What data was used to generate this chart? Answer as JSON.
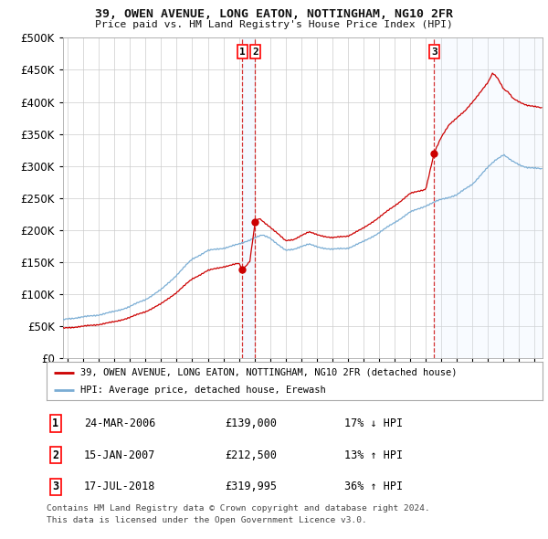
{
  "title": "39, OWEN AVENUE, LONG EATON, NOTTINGHAM, NG10 2FR",
  "subtitle": "Price paid vs. HM Land Registry's House Price Index (HPI)",
  "legend_line1": "39, OWEN AVENUE, LONG EATON, NOTTINGHAM, NG10 2FR (detached house)",
  "legend_line2": "HPI: Average price, detached house, Erewash",
  "transactions": [
    {
      "num": 1,
      "date": "24-MAR-2006",
      "price": 139000,
      "pct": "17%",
      "dir": "↓",
      "date_decimal": 2006.22
    },
    {
      "num": 2,
      "date": "15-JAN-2007",
      "price": 212500,
      "pct": "13%",
      "dir": "↑",
      "date_decimal": 2007.04
    },
    {
      "num": 3,
      "date": "17-JUL-2018",
      "price": 319995,
      "pct": "36%",
      "dir": "↑",
      "date_decimal": 2018.54
    }
  ],
  "footer_line1": "Contains HM Land Registry data © Crown copyright and database right 2024.",
  "footer_line2": "This data is licensed under the Open Government Licence v3.0.",
  "property_color": "#cc0000",
  "hpi_color": "#7aadd4",
  "shading_color": "#ddeeff",
  "grid_color": "#cccccc",
  "background_color": "#ffffff",
  "ylim": [
    0,
    500000
  ],
  "yticks": [
    0,
    50000,
    100000,
    150000,
    200000,
    250000,
    300000,
    350000,
    400000,
    450000,
    500000
  ],
  "xlim_start": 1994.7,
  "xlim_end": 2025.5
}
